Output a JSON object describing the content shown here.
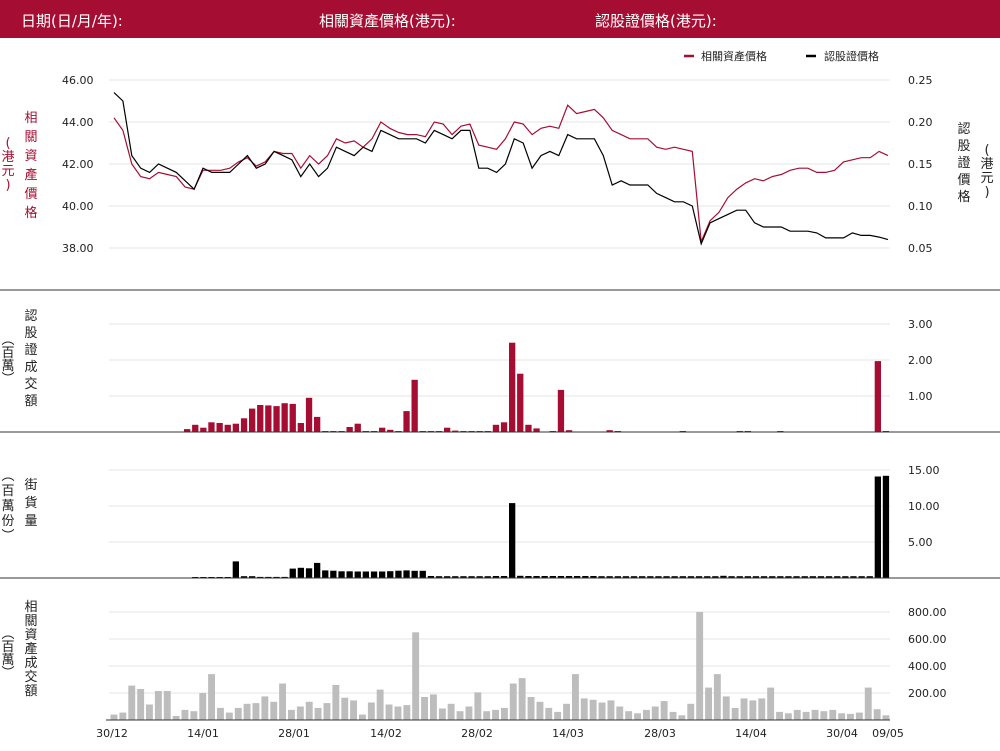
{
  "header": {
    "date_label": "日期(日/月/年):",
    "underlying_price_label": "相關資產價格(港元):",
    "warrant_price_label": "認股證價格(港元):"
  },
  "colors": {
    "header_bg": "#a50e32",
    "underlying": "#a50e32",
    "warrant": "#000000",
    "underlying_turnover": "#bdbdbd"
  },
  "chart_data": [
    {
      "type": "line",
      "legend": [
        "相關資產價格",
        "認股證價格"
      ],
      "legend_position": "top-right",
      "left_axis_label": "相關資產價格 (港元)",
      "right_axis_label": "認股證價格 (港元)",
      "left_ticks": [
        "46.00",
        "44.00",
        "42.00",
        "40.00",
        "38.00"
      ],
      "right_ticks": [
        "0.25",
        "0.20",
        "0.15",
        "0.10",
        "0.05"
      ],
      "left_ylim": [
        37.2,
        46.8
      ],
      "right_ylim": [
        0.04,
        0.26
      ],
      "x_ticks": [
        "30/12",
        "14/01",
        "28/01",
        "14/02",
        "28/02",
        "14/03",
        "28/03",
        "14/04",
        "30/04",
        "09/05"
      ],
      "series": [
        {
          "name": "相關資產價格",
          "axis": "left",
          "values": [
            44.2,
            43.6,
            42.0,
            41.4,
            41.3,
            41.6,
            41.5,
            41.4,
            40.9,
            40.8,
            41.7,
            41.7,
            41.7,
            41.8,
            42.1,
            42.3,
            41.9,
            42.1,
            42.6,
            42.5,
            42.5,
            41.8,
            42.4,
            42.0,
            42.4,
            43.2,
            43.0,
            43.1,
            42.8,
            43.2,
            44.0,
            43.7,
            43.5,
            43.4,
            43.4,
            43.3,
            44.0,
            43.9,
            43.4,
            43.8,
            43.9,
            42.9,
            42.8,
            42.7,
            43.2,
            44.0,
            43.9,
            43.4,
            43.7,
            43.8,
            43.7,
            44.8,
            44.4,
            44.5,
            44.6,
            44.2,
            43.6,
            43.4,
            43.2,
            43.2,
            43.2,
            42.8,
            42.7,
            42.8,
            42.7,
            42.6,
            38.3,
            39.3,
            39.7,
            40.4,
            40.8,
            41.1,
            41.3,
            41.2,
            41.4,
            41.5,
            41.7,
            41.8,
            41.8,
            41.6,
            41.6,
            41.7,
            42.1,
            42.2,
            42.3,
            42.3,
            42.6,
            42.4
          ]
        },
        {
          "name": "認股證價格",
          "axis": "right",
          "values": [
            0.235,
            0.225,
            0.16,
            0.145,
            0.14,
            0.15,
            0.145,
            0.14,
            0.13,
            0.12,
            0.145,
            0.14,
            0.14,
            0.14,
            0.15,
            0.16,
            0.145,
            0.15,
            0.165,
            0.16,
            0.155,
            0.135,
            0.15,
            0.135,
            0.145,
            0.17,
            0.165,
            0.16,
            0.17,
            0.165,
            0.19,
            0.185,
            0.18,
            0.18,
            0.18,
            0.175,
            0.19,
            0.185,
            0.18,
            0.19,
            0.19,
            0.145,
            0.145,
            0.14,
            0.15,
            0.18,
            0.175,
            0.145,
            0.16,
            0.165,
            0.16,
            0.185,
            0.18,
            0.18,
            0.18,
            0.16,
            0.125,
            0.13,
            0.125,
            0.125,
            0.125,
            0.115,
            0.11,
            0.105,
            0.105,
            0.1,
            0.055,
            0.08,
            0.085,
            0.09,
            0.095,
            0.095,
            0.08,
            0.075,
            0.075,
            0.075,
            0.07,
            0.07,
            0.07,
            0.068,
            0.062,
            0.062,
            0.062,
            0.068,
            0.065,
            0.065,
            0.063,
            0.06
          ]
        }
      ]
    },
    {
      "type": "bar",
      "ylabel": "認股證成交額 (百萬)",
      "ticks": [
        "3.00",
        "2.00",
        "1.00"
      ],
      "ylim": [
        0,
        3.15
      ],
      "values": [
        0,
        0,
        0,
        0,
        0,
        0,
        0,
        0,
        0,
        0.08,
        0.2,
        0.12,
        0.27,
        0.25,
        0.2,
        0.23,
        0.38,
        0.65,
        0.75,
        0.74,
        0.72,
        0.8,
        0.78,
        0.25,
        0.95,
        0.42,
        0.02,
        0.02,
        0.02,
        0.14,
        0.23,
        0.02,
        0.02,
        0.12,
        0.06,
        0.02,
        0.58,
        1.45,
        0.02,
        0.02,
        0.02,
        0.12,
        0.04,
        0.02,
        0.02,
        0.02,
        0.02,
        0.2,
        0.27,
        2.48,
        1.62,
        0.2,
        0.1,
        0,
        0.02,
        1.17,
        0.05,
        0,
        0,
        0,
        0,
        0.05,
        0.02,
        0,
        0,
        0,
        0,
        0,
        0,
        0,
        0.02,
        0,
        0,
        0,
        0,
        0,
        0,
        0.02,
        0.02,
        0,
        0,
        0,
        0.02,
        0,
        0,
        0,
        0,
        0,
        0,
        0,
        0,
        0,
        0,
        0,
        1.97,
        0.02
      ]
    },
    {
      "type": "bar",
      "ylabel": "街貨量 (百萬份)",
      "ticks": [
        "15.00",
        "10.00",
        "5.00"
      ],
      "ylim": [
        0,
        16.2
      ],
      "values": [
        0,
        0,
        0,
        0,
        0,
        0,
        0,
        0,
        0,
        0,
        0.08,
        0.08,
        0.08,
        0.08,
        0.08,
        2.3,
        0.25,
        0.25,
        0.15,
        0.15,
        0.15,
        0.15,
        1.3,
        1.42,
        1.35,
        2.1,
        1.05,
        1.02,
        0.93,
        0.93,
        0.9,
        0.9,
        0.9,
        0.9,
        0.95,
        1.02,
        1.05,
        1.0,
        1.0,
        0.28,
        0.25,
        0.25,
        0.25,
        0.25,
        0.25,
        0.25,
        0.25,
        0.28,
        0.28,
        10.4,
        0.3,
        0.28,
        0.28,
        0.28,
        0.28,
        0.28,
        0.28,
        0.28,
        0.28,
        0.28,
        0.25,
        0.25,
        0.25,
        0.25,
        0.25,
        0.25,
        0.25,
        0.25,
        0.25,
        0.25,
        0.25,
        0.25,
        0.25,
        0.25,
        0.25,
        0.3,
        0.25,
        0.25,
        0.25,
        0.25,
        0.25,
        0.25,
        0.25,
        0.25,
        0.25,
        0.25,
        0.25,
        0.25,
        0.25,
        0.25,
        0.25,
        0.25,
        0.25,
        0.25,
        14.1,
        14.2
      ]
    },
    {
      "type": "bar",
      "ylabel": "相關資產成交額 (百萬)",
      "ticks": [
        "800.00",
        "600.00",
        "400.00",
        "200.00"
      ],
      "ylim": [
        0,
        880
      ],
      "values": [
        40,
        55,
        255,
        230,
        115,
        215,
        215,
        30,
        75,
        65,
        200,
        340,
        90,
        55,
        90,
        120,
        125,
        175,
        135,
        270,
        75,
        100,
        135,
        90,
        125,
        260,
        165,
        145,
        40,
        130,
        225,
        115,
        100,
        110,
        650,
        170,
        190,
        85,
        120,
        65,
        100,
        205,
        65,
        75,
        90,
        270,
        310,
        170,
        135,
        90,
        60,
        120,
        340,
        160,
        150,
        130,
        145,
        100,
        65,
        50,
        75,
        100,
        140,
        60,
        35,
        120,
        800,
        240,
        340,
        175,
        90,
        160,
        145,
        160,
        240,
        60,
        50,
        75,
        60,
        75,
        65,
        75,
        50,
        45,
        55,
        240,
        80,
        35
      ]
    }
  ]
}
